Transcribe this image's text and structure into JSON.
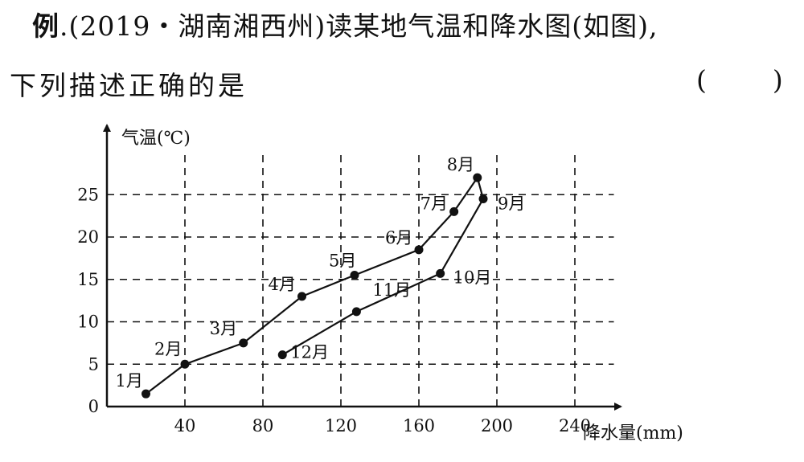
{
  "question": {
    "label": "例",
    "sep": ".",
    "stem_line1": "(2019・湖南湘西州)读某地气温和降水图(如图),",
    "stem_line2": "下列描述正确的是",
    "answer_paren_open": "(",
    "answer_paren_close": ")"
  },
  "chart_data": {
    "type": "scatter",
    "xlabel": "降水量(mm)",
    "ylabel": "气温(℃)",
    "xlim": [
      0,
      260
    ],
    "ylim": [
      0,
      30
    ],
    "x_ticks": [
      "40",
      "80",
      "120",
      "160",
      "200",
      "240"
    ],
    "y_ticks": [
      "0",
      "5",
      "10",
      "15",
      "20",
      "25"
    ],
    "grid": true,
    "connected_in_order": true,
    "points": [
      {
        "label": "1月",
        "x": 20,
        "y": 1.5
      },
      {
        "label": "2月",
        "x": 40,
        "y": 5
      },
      {
        "label": "3月",
        "x": 70,
        "y": 7.5
      },
      {
        "label": "4月",
        "x": 100,
        "y": 13
      },
      {
        "label": "5月",
        "x": 127,
        "y": 15.5
      },
      {
        "label": "6月",
        "x": 160,
        "y": 18.5
      },
      {
        "label": "7月",
        "x": 178,
        "y": 23
      },
      {
        "label": "8月",
        "x": 190,
        "y": 27
      },
      {
        "label": "9月",
        "x": 193,
        "y": 24.5
      },
      {
        "label": "10月",
        "x": 171,
        "y": 15.7
      },
      {
        "label": "11月",
        "x": 128,
        "y": 11.2
      },
      {
        "label": "12月",
        "x": 90,
        "y": 6.1
      }
    ]
  }
}
